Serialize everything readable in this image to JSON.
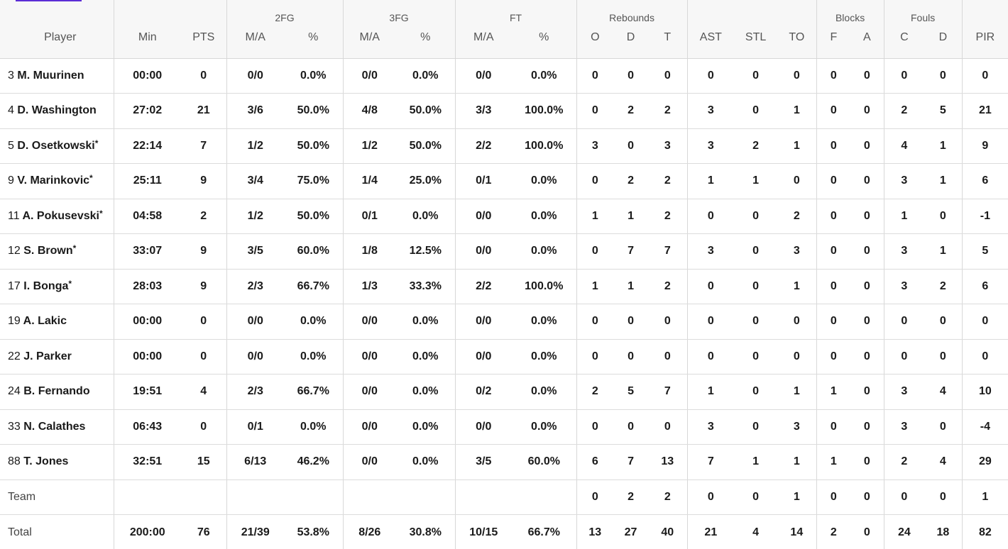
{
  "groups": {
    "fg2": "2FG",
    "fg3": "3FG",
    "ft": "FT",
    "rebounds": "Rebounds",
    "blocks": "Blocks",
    "fouls": "Fouls"
  },
  "columns": {
    "player": "Player",
    "min": "Min",
    "pts": "PTS",
    "fg2_ma": "M/A",
    "fg2_pct": "%",
    "fg3_ma": "M/A",
    "fg3_pct": "%",
    "ft_ma": "M/A",
    "ft_pct": "%",
    "reb_o": "O",
    "reb_d": "D",
    "reb_t": "T",
    "ast": "AST",
    "stl": "STL",
    "to": "TO",
    "blk_f": "F",
    "blk_a": "A",
    "foul_c": "C",
    "foul_d": "D",
    "pir": "PIR"
  },
  "rows": [
    {
      "num": "3",
      "name": "M. Muurinen",
      "starter": "",
      "min": "00:00",
      "pts": "0",
      "fg2_ma": "0/0",
      "fg2_pct": "0.0%",
      "fg3_ma": "0/0",
      "fg3_pct": "0.0%",
      "ft_ma": "0/0",
      "ft_pct": "0.0%",
      "reb_o": "0",
      "reb_d": "0",
      "reb_t": "0",
      "ast": "0",
      "stl": "0",
      "to": "0",
      "blk_f": "0",
      "blk_a": "0",
      "foul_c": "0",
      "foul_d": "0",
      "pir": "0"
    },
    {
      "num": "4",
      "name": "D. Washington",
      "starter": "",
      "min": "27:02",
      "pts": "21",
      "fg2_ma": "3/6",
      "fg2_pct": "50.0%",
      "fg3_ma": "4/8",
      "fg3_pct": "50.0%",
      "ft_ma": "3/3",
      "ft_pct": "100.0%",
      "reb_o": "0",
      "reb_d": "2",
      "reb_t": "2",
      "ast": "3",
      "stl": "0",
      "to": "1",
      "blk_f": "0",
      "blk_a": "0",
      "foul_c": "2",
      "foul_d": "5",
      "pir": "21"
    },
    {
      "num": "5",
      "name": "D. Osetkowski",
      "starter": "*",
      "min": "22:14",
      "pts": "7",
      "fg2_ma": "1/2",
      "fg2_pct": "50.0%",
      "fg3_ma": "1/2",
      "fg3_pct": "50.0%",
      "ft_ma": "2/2",
      "ft_pct": "100.0%",
      "reb_o": "3",
      "reb_d": "0",
      "reb_t": "3",
      "ast": "3",
      "stl": "2",
      "to": "1",
      "blk_f": "0",
      "blk_a": "0",
      "foul_c": "4",
      "foul_d": "1",
      "pir": "9"
    },
    {
      "num": "9",
      "name": "V. Marinkovic",
      "starter": "*",
      "min": "25:11",
      "pts": "9",
      "fg2_ma": "3/4",
      "fg2_pct": "75.0%",
      "fg3_ma": "1/4",
      "fg3_pct": "25.0%",
      "ft_ma": "0/1",
      "ft_pct": "0.0%",
      "reb_o": "0",
      "reb_d": "2",
      "reb_t": "2",
      "ast": "1",
      "stl": "1",
      "to": "0",
      "blk_f": "0",
      "blk_a": "0",
      "foul_c": "3",
      "foul_d": "1",
      "pir": "6"
    },
    {
      "num": "11",
      "name": "A. Pokusevski",
      "starter": "*",
      "min": "04:58",
      "pts": "2",
      "fg2_ma": "1/2",
      "fg2_pct": "50.0%",
      "fg3_ma": "0/1",
      "fg3_pct": "0.0%",
      "ft_ma": "0/0",
      "ft_pct": "0.0%",
      "reb_o": "1",
      "reb_d": "1",
      "reb_t": "2",
      "ast": "0",
      "stl": "0",
      "to": "2",
      "blk_f": "0",
      "blk_a": "0",
      "foul_c": "1",
      "foul_d": "0",
      "pir": "-1"
    },
    {
      "num": "12",
      "name": "S. Brown",
      "starter": "*",
      "min": "33:07",
      "pts": "9",
      "fg2_ma": "3/5",
      "fg2_pct": "60.0%",
      "fg3_ma": "1/8",
      "fg3_pct": "12.5%",
      "ft_ma": "0/0",
      "ft_pct": "0.0%",
      "reb_o": "0",
      "reb_d": "7",
      "reb_t": "7",
      "ast": "3",
      "stl": "0",
      "to": "3",
      "blk_f": "0",
      "blk_a": "0",
      "foul_c": "3",
      "foul_d": "1",
      "pir": "5"
    },
    {
      "num": "17",
      "name": "I. Bonga",
      "starter": "*",
      "min": "28:03",
      "pts": "9",
      "fg2_ma": "2/3",
      "fg2_pct": "66.7%",
      "fg3_ma": "1/3",
      "fg3_pct": "33.3%",
      "ft_ma": "2/2",
      "ft_pct": "100.0%",
      "reb_o": "1",
      "reb_d": "1",
      "reb_t": "2",
      "ast": "0",
      "stl": "0",
      "to": "1",
      "blk_f": "0",
      "blk_a": "0",
      "foul_c": "3",
      "foul_d": "2",
      "pir": "6"
    },
    {
      "num": "19",
      "name": "A. Lakic",
      "starter": "",
      "min": "00:00",
      "pts": "0",
      "fg2_ma": "0/0",
      "fg2_pct": "0.0%",
      "fg3_ma": "0/0",
      "fg3_pct": "0.0%",
      "ft_ma": "0/0",
      "ft_pct": "0.0%",
      "reb_o": "0",
      "reb_d": "0",
      "reb_t": "0",
      "ast": "0",
      "stl": "0",
      "to": "0",
      "blk_f": "0",
      "blk_a": "0",
      "foul_c": "0",
      "foul_d": "0",
      "pir": "0"
    },
    {
      "num": "22",
      "name": "J. Parker",
      "starter": "",
      "min": "00:00",
      "pts": "0",
      "fg2_ma": "0/0",
      "fg2_pct": "0.0%",
      "fg3_ma": "0/0",
      "fg3_pct": "0.0%",
      "ft_ma": "0/0",
      "ft_pct": "0.0%",
      "reb_o": "0",
      "reb_d": "0",
      "reb_t": "0",
      "ast": "0",
      "stl": "0",
      "to": "0",
      "blk_f": "0",
      "blk_a": "0",
      "foul_c": "0",
      "foul_d": "0",
      "pir": "0"
    },
    {
      "num": "24",
      "name": "B. Fernando",
      "starter": "",
      "min": "19:51",
      "pts": "4",
      "fg2_ma": "2/3",
      "fg2_pct": "66.7%",
      "fg3_ma": "0/0",
      "fg3_pct": "0.0%",
      "ft_ma": "0/2",
      "ft_pct": "0.0%",
      "reb_o": "2",
      "reb_d": "5",
      "reb_t": "7",
      "ast": "1",
      "stl": "0",
      "to": "1",
      "blk_f": "1",
      "blk_a": "0",
      "foul_c": "3",
      "foul_d": "4",
      "pir": "10"
    },
    {
      "num": "33",
      "name": "N. Calathes",
      "starter": "",
      "min": "06:43",
      "pts": "0",
      "fg2_ma": "0/1",
      "fg2_pct": "0.0%",
      "fg3_ma": "0/0",
      "fg3_pct": "0.0%",
      "ft_ma": "0/0",
      "ft_pct": "0.0%",
      "reb_o": "0",
      "reb_d": "0",
      "reb_t": "0",
      "ast": "3",
      "stl": "0",
      "to": "3",
      "blk_f": "0",
      "blk_a": "0",
      "foul_c": "3",
      "foul_d": "0",
      "pir": "-4"
    },
    {
      "num": "88",
      "name": "T. Jones",
      "starter": "",
      "min": "32:51",
      "pts": "15",
      "fg2_ma": "6/13",
      "fg2_pct": "46.2%",
      "fg3_ma": "0/0",
      "fg3_pct": "0.0%",
      "ft_ma": "3/5",
      "ft_pct": "60.0%",
      "reb_o": "6",
      "reb_d": "7",
      "reb_t": "13",
      "ast": "7",
      "stl": "1",
      "to": "1",
      "blk_f": "1",
      "blk_a": "0",
      "foul_c": "2",
      "foul_d": "4",
      "pir": "29"
    }
  ],
  "team": {
    "label": "Team",
    "min": "",
    "pts": "",
    "fg2_ma": "",
    "fg2_pct": "",
    "fg3_ma": "",
    "fg3_pct": "",
    "ft_ma": "",
    "ft_pct": "",
    "reb_o": "0",
    "reb_d": "2",
    "reb_t": "2",
    "ast": "0",
    "stl": "0",
    "to": "1",
    "blk_f": "0",
    "blk_a": "0",
    "foul_c": "0",
    "foul_d": "0",
    "pir": "1"
  },
  "total": {
    "label": "Total",
    "min": "200:00",
    "pts": "76",
    "fg2_ma": "21/39",
    "fg2_pct": "53.8%",
    "fg3_ma": "8/26",
    "fg3_pct": "30.8%",
    "ft_ma": "10/15",
    "ft_pct": "66.7%",
    "reb_o": "13",
    "reb_d": "27",
    "reb_t": "40",
    "ast": "21",
    "stl": "4",
    "to": "14",
    "blk_f": "2",
    "blk_a": "0",
    "foul_c": "24",
    "foul_d": "18",
    "pir": "82"
  },
  "accent_color": "#5b2dd6"
}
